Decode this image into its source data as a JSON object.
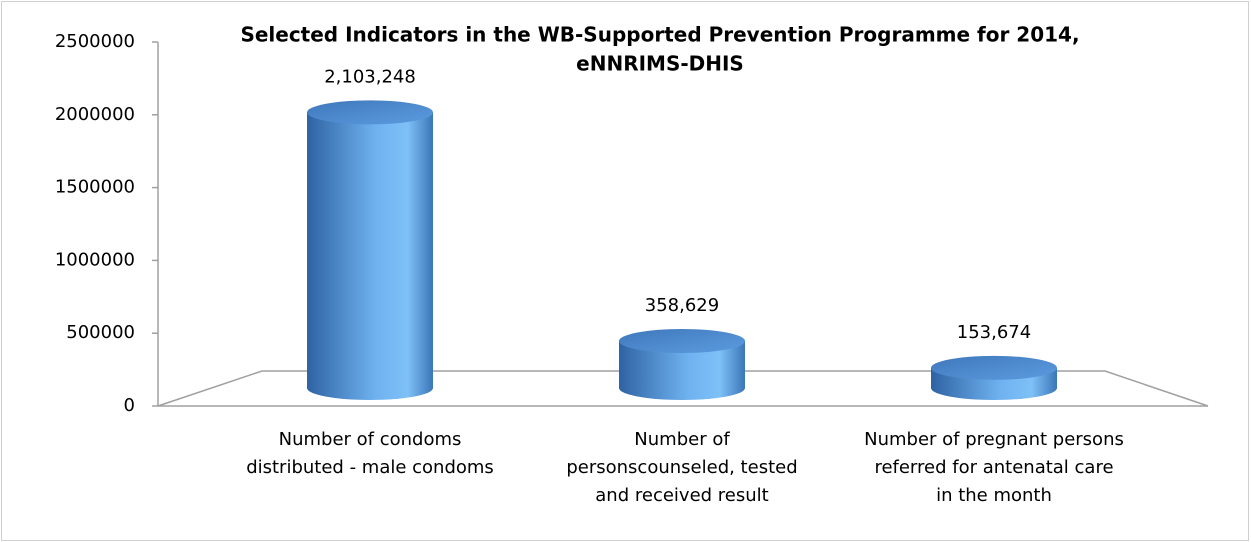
{
  "chart_data": {
    "type": "bar",
    "title": [
      "Selected Indicators in the WB-Supported Prevention Programme for 2014,",
      "eNNRIMS-DHIS"
    ],
    "categories": [
      [
        "Number of condoms",
        "distributed - male condoms"
      ],
      [
        "Number of",
        "personscounseled, tested",
        "and received result"
      ],
      [
        "Number of pregnant persons",
        "referred for antenatal care",
        "in the month"
      ]
    ],
    "values": [
      2103248,
      358629,
      153674
    ],
    "value_labels": [
      "2,103,248",
      "358,629",
      "153,674"
    ],
    "color": "#4f8fd6",
    "ylim": [
      0,
      2500000
    ],
    "yticks": [
      0,
      500000,
      1000000,
      1500000,
      2000000,
      2500000
    ],
    "grid": false
  }
}
